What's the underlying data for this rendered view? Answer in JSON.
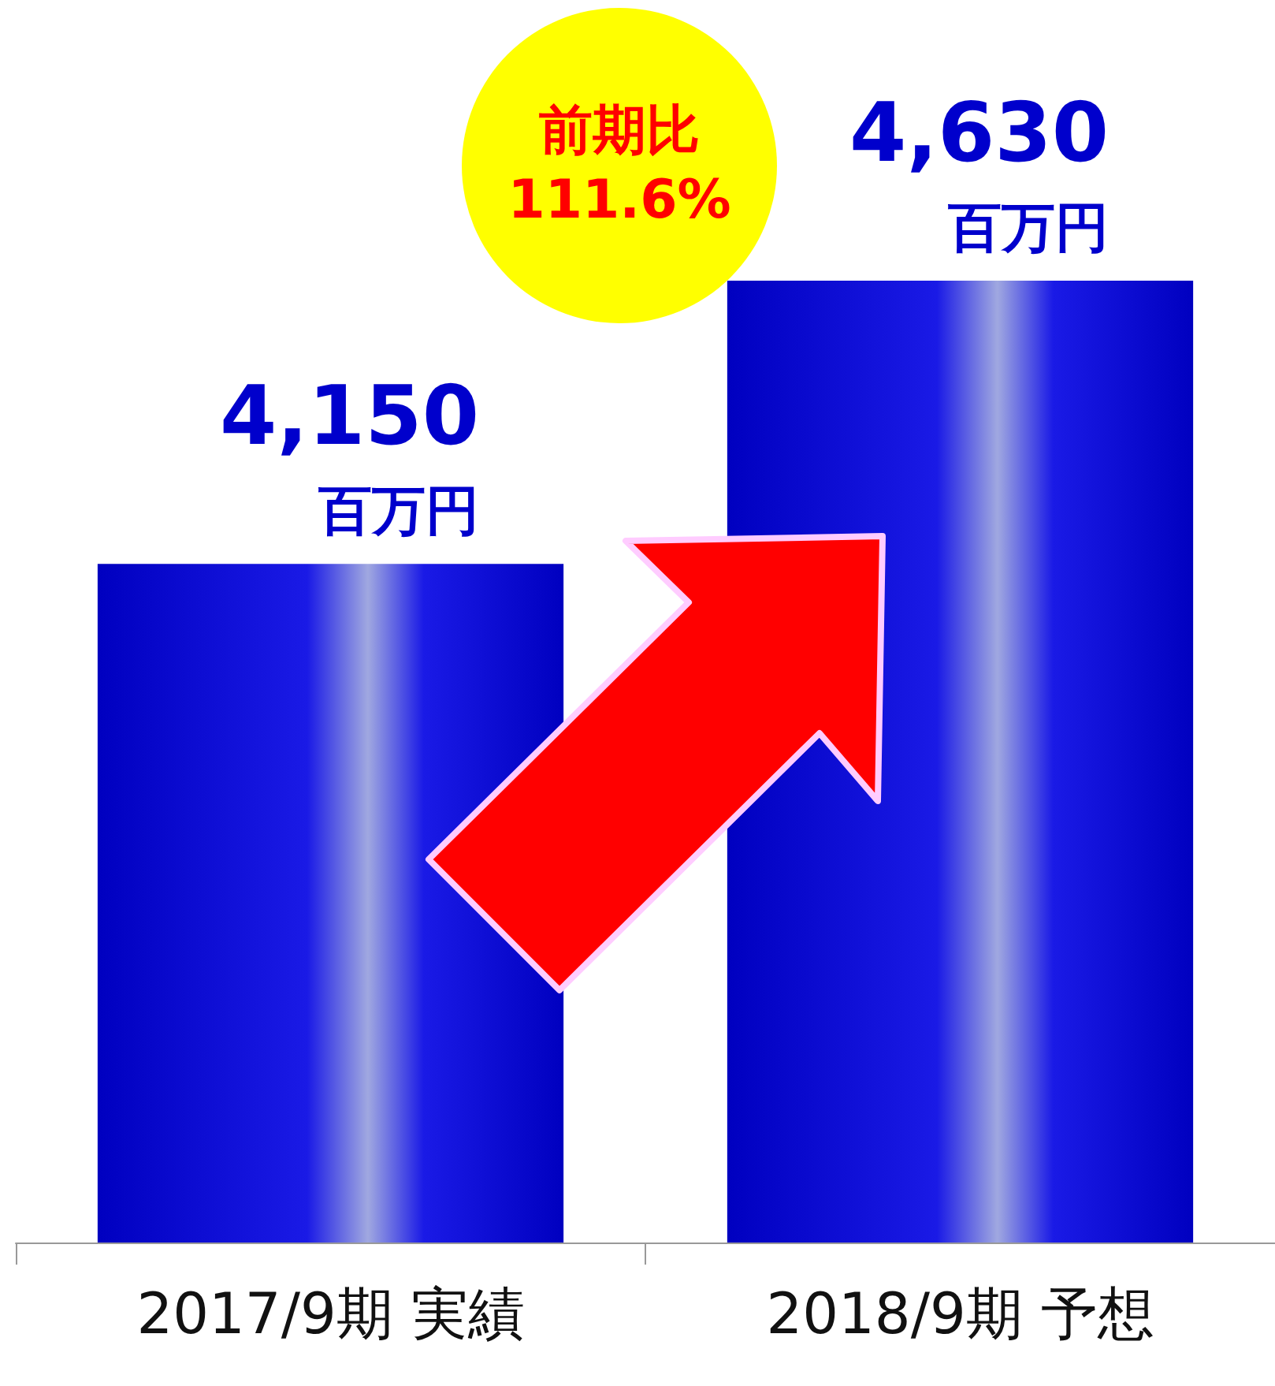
{
  "chart_data": {
    "type": "bar",
    "categories": [
      "2017/9期 実績",
      "2018/9期 予想"
    ],
    "values": [
      4150,
      4630
    ],
    "color": "#1a1ae6",
    "value_labels": [
      "4,150 百万円",
      "4,630 百万円"
    ],
    "ylim": [
      3000,
      4630
    ],
    "tick_labels": "x",
    "annotations": [
      "前期比 111.6%"
    ]
  }
}
